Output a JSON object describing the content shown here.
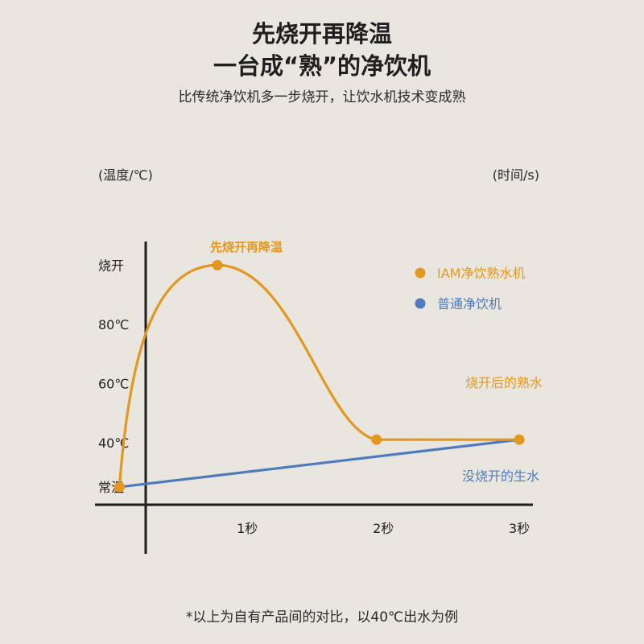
{
  "header": {
    "title_line1": "先烧开再降温",
    "title_line2": "一台成“熟”的净饮机",
    "subtitle": "比传统净饮机多一步烧开，让饮水机技术变成熟"
  },
  "footnote": "*以上为自有产品间的对比，以40℃出水为例",
  "colors": {
    "background": "#e9e6e0",
    "iam": "#e3971e",
    "normal": "#4f7bbd",
    "axis": "#1f1f1f",
    "text": "#222222"
  },
  "chart_data": {
    "type": "line",
    "xlabel": "(时间/s)",
    "ylabel": "(温度/℃)",
    "x_ticks": [
      {
        "value": 1,
        "label": "1秒"
      },
      {
        "value": 2,
        "label": "2秒"
      },
      {
        "value": 3,
        "label": "3秒"
      }
    ],
    "y_ticks": [
      {
        "value": 25,
        "label": "常温"
      },
      {
        "value": 40,
        "label": "40℃"
      },
      {
        "value": 60,
        "label": "60℃"
      },
      {
        "value": 80,
        "label": "80℃"
      },
      {
        "value": 100,
        "label": "烧开"
      }
    ],
    "xlim": [
      -0.12,
      3.1
    ],
    "ylim": [
      19,
      108
    ],
    "series": [
      {
        "name": "IAM净饮熟水机",
        "key": "iam",
        "values": [
          [
            0.06,
            25
          ],
          [
            0.78,
            100
          ],
          [
            1.95,
            41
          ],
          [
            3.0,
            41
          ]
        ],
        "markers": [
          [
            0.06,
            25
          ],
          [
            0.78,
            100
          ],
          [
            1.95,
            41
          ],
          [
            3.0,
            41
          ]
        ]
      },
      {
        "name": "普通净饮机",
        "key": "normal",
        "values": [
          [
            0.06,
            25
          ],
          [
            3.0,
            41
          ]
        ]
      }
    ],
    "annotations": {
      "peak": "先烧开再降温",
      "boiled": "烧开后的熟水",
      "raw": "没烧开的生水"
    },
    "legend_position": "top-right",
    "grid": false
  }
}
